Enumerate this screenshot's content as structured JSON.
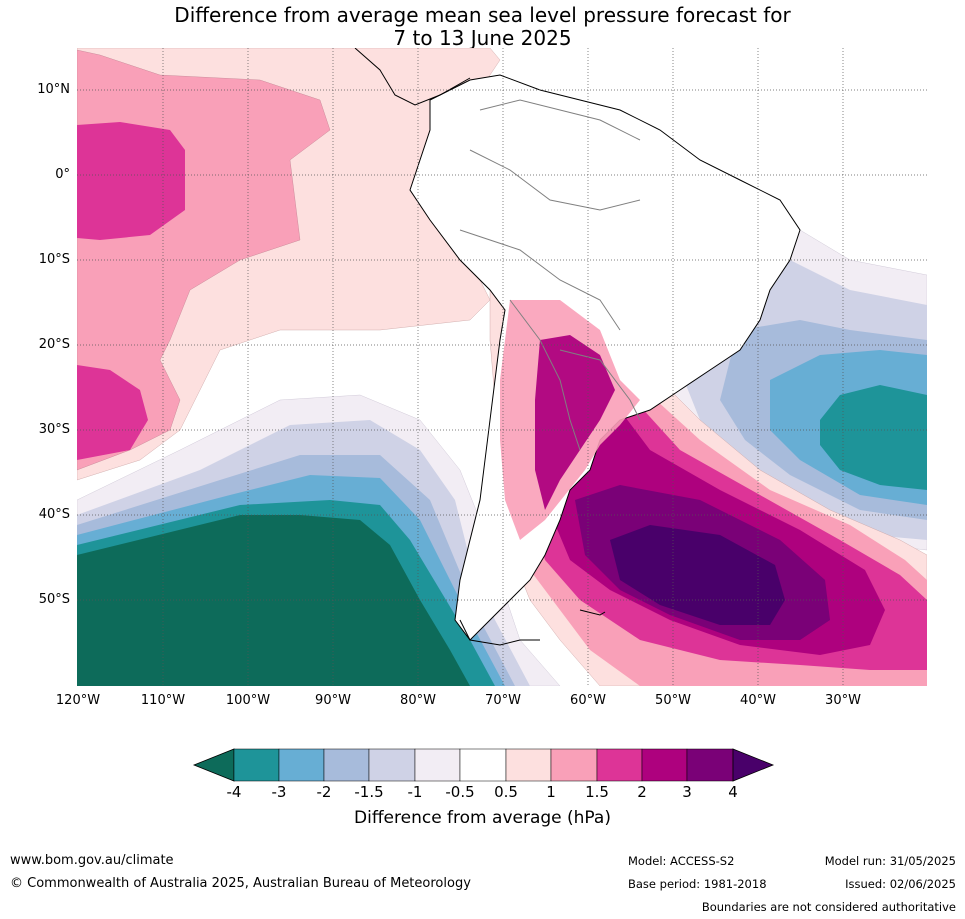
{
  "title_line1": "Difference from average mean sea level pressure forecast for",
  "title_line2": "7 to 13 June 2025",
  "lat_labels": [
    "10°N",
    "0°",
    "10°S",
    "20°S",
    "30°S",
    "40°S",
    "50°S"
  ],
  "lon_labels": [
    "120°W",
    "110°W",
    "100°W",
    "90°W",
    "80°W",
    "70°W",
    "60°W",
    "50°W",
    "40°W",
    "30°W"
  ],
  "colorbar": {
    "title": "Difference from average (hPa)",
    "ticks": [
      "-4",
      "-3",
      "-2",
      "-1.5",
      "-1",
      "-0.5",
      "0.5",
      "1",
      "1.5",
      "2",
      "3",
      "4"
    ],
    "colors": [
      "#0d6b5a",
      "#1e9499",
      "#67aed4",
      "#a7bbdb",
      "#cfd2e6",
      "#f2edf4",
      "#ffffff",
      "#fde0df",
      "#f9a0b8",
      "#dd3497",
      "#ae017e",
      "#7a0177",
      "#49006a"
    ]
  },
  "footer": {
    "website": "www.bom.gov.au/climate",
    "copyright": "© Commonwealth of Australia 2025, Australian Bureau of Meteorology",
    "model": "Model: ACCESS-S2",
    "base_period": "Base period: 1981-2018",
    "model_run": "Model run: 31/05/2025",
    "issued": "Issued: 02/06/2025",
    "disclaimer": "Boundaries are not considered authoritative"
  }
}
